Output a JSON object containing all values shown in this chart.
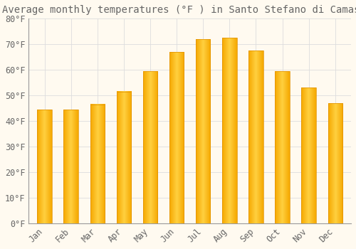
{
  "title": "Average monthly temperatures (°F ) in Santo Stefano di Camastra",
  "months": [
    "Jan",
    "Feb",
    "Mar",
    "Apr",
    "May",
    "Jun",
    "Jul",
    "Aug",
    "Sep",
    "Oct",
    "Nov",
    "Dec"
  ],
  "values": [
    44.5,
    44.5,
    46.5,
    51.5,
    59.5,
    67,
    72,
    72.5,
    67.5,
    59.5,
    53,
    47
  ],
  "bar_color_center": "#FFD040",
  "bar_color_edge": "#F5A800",
  "background_color": "#FFFAF0",
  "grid_color": "#DDDDDD",
  "text_color": "#666666",
  "ylim": [
    0,
    80
  ],
  "yticks": [
    0,
    10,
    20,
    30,
    40,
    50,
    60,
    70,
    80
  ],
  "title_fontsize": 10,
  "tick_fontsize": 8.5,
  "bar_width": 0.55
}
